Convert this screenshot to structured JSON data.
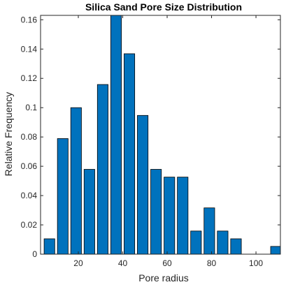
{
  "chart_data": {
    "type": "bar",
    "title": "Silica Sand Pore Size Distribution",
    "xlabel": "Pore radius",
    "ylabel": "Relative Frequency",
    "x": [
      7,
      13,
      19,
      25,
      31,
      37,
      43,
      49,
      55,
      61,
      67,
      73,
      79,
      85,
      91,
      97,
      103,
      109
    ],
    "values": [
      0.0105,
      0.0789,
      0.1,
      0.0579,
      0.1158,
      0.1632,
      0.1368,
      0.0947,
      0.0579,
      0.0526,
      0.0526,
      0.0158,
      0.0316,
      0.0158,
      0.0105,
      0,
      0,
      0.0053
    ],
    "xlim": [
      3,
      111
    ],
    "ylim": [
      0,
      0.163
    ],
    "xticks": [
      20,
      40,
      60,
      80,
      100
    ],
    "yticks": [
      0,
      0.02,
      0.04,
      0.06,
      0.08,
      0.1,
      0.12,
      0.14,
      0.16
    ],
    "xtick_labels": [
      "20",
      "40",
      "60",
      "80",
      "100"
    ],
    "ytick_labels": [
      "0",
      "0.02",
      "0.04",
      "0.06",
      "0.08",
      "0.1",
      "0.12",
      "0.14",
      "0.16"
    ],
    "bar_width": 4.8,
    "bar_color": "#0072BD",
    "edge_color": "#000000",
    "grid": false
  }
}
